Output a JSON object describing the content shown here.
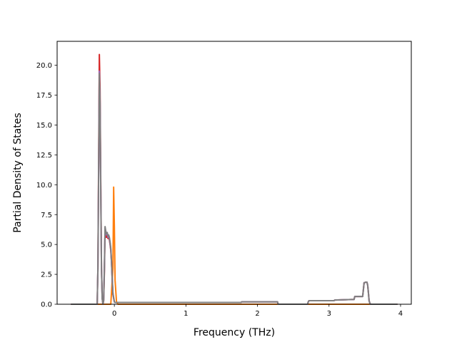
{
  "chart_data": {
    "type": "line",
    "title": "",
    "xlabel": "Frequency (THz)",
    "ylabel": "Partial Density of States",
    "xlim": [
      -0.8,
      4.15
    ],
    "ylim": [
      0,
      22
    ],
    "xticks": [
      0,
      1,
      2,
      3,
      4
    ],
    "xtick_labels": [
      "0",
      "1",
      "2",
      "3",
      "4"
    ],
    "yticks": [
      0.0,
      2.5,
      5.0,
      7.5,
      10.0,
      12.5,
      15.0,
      17.5,
      20.0
    ],
    "ytick_labels": [
      "0.0",
      "2.5",
      "5.0",
      "7.5",
      "10.0",
      "12.5",
      "15.0",
      "17.5",
      "20.0"
    ],
    "grid": false,
    "legend": "none",
    "series": [
      {
        "color": "#ff7f0e",
        "x": [
          -0.6,
          -0.05,
          -0.02,
          -0.01,
          0.0,
          0.01,
          0.03,
          0.05,
          3.95
        ],
        "y": [
          0,
          0,
          3.0,
          9.8,
          6.5,
          2.0,
          0.2,
          0,
          0
        ]
      },
      {
        "color": "#d62728",
        "x": [
          -0.6,
          -0.24,
          -0.23,
          -0.22,
          -0.21,
          -0.2,
          -0.19,
          -0.18,
          -0.17,
          -0.16,
          -0.15,
          -0.14,
          -0.13,
          -0.12,
          -0.11,
          -0.1,
          -0.09,
          -0.08,
          -0.07,
          -0.06,
          -0.05,
          -0.04,
          -0.03,
          -0.02,
          0.0,
          0.01,
          0.02,
          0.03,
          0.05,
          0.2,
          0.5,
          1.0,
          1.5,
          1.77,
          1.78,
          2.0,
          2.28,
          2.29,
          2.7,
          2.71,
          2.72,
          3.07,
          3.08,
          3.35,
          3.36,
          3.47,
          3.48,
          3.49,
          3.5,
          3.51,
          3.53,
          3.54,
          3.55,
          3.56,
          3.57,
          3.58,
          3.95
        ],
        "y": [
          0,
          0,
          3.0,
          12.0,
          20.9,
          18.0,
          10.0,
          3.0,
          0.5,
          0,
          0.3,
          2.5,
          6.2,
          5.6,
          5.6,
          5.9,
          5.5,
          5.6,
          5.4,
          5.0,
          4.5,
          3.5,
          2.0,
          0.8,
          0.2,
          0.15,
          0.15,
          0.15,
          0.15,
          0.15,
          0.15,
          0.15,
          0.15,
          0.15,
          0.2,
          0.2,
          0.2,
          0,
          0,
          0.2,
          0.3,
          0.3,
          0.35,
          0.4,
          0.65,
          0.65,
          1.2,
          1.8,
          1.8,
          1.85,
          1.85,
          1.6,
          1.0,
          0.3,
          0.1,
          0,
          0
        ]
      },
      {
        "color": "#9467bd",
        "x": [
          -0.6,
          -0.24,
          -0.23,
          -0.22,
          -0.21,
          -0.2,
          -0.19,
          -0.18,
          -0.17,
          -0.16,
          -0.15,
          -0.14,
          -0.13,
          -0.12,
          -0.11,
          -0.1,
          -0.09,
          -0.08,
          -0.07,
          -0.06,
          -0.05,
          -0.04,
          -0.03,
          -0.02,
          0.0,
          0.01,
          0.02,
          0.03,
          0.05,
          0.2,
          0.5,
          1.0,
          1.5,
          1.77,
          1.78,
          2.0,
          2.28,
          2.29,
          2.7,
          2.71,
          2.72,
          3.07,
          3.08,
          3.35,
          3.36,
          3.47,
          3.48,
          3.49,
          3.5,
          3.51,
          3.53,
          3.54,
          3.55,
          3.56,
          3.57,
          3.58,
          3.95
        ],
        "y": [
          0,
          0,
          3.0,
          11.0,
          19.5,
          17.0,
          9.5,
          3.0,
          0.5,
          0,
          0.3,
          2.8,
          6.4,
          6.0,
          5.8,
          6.0,
          5.6,
          5.7,
          5.5,
          5.1,
          4.6,
          3.6,
          2.1,
          0.9,
          0.2,
          0.15,
          0.15,
          0.15,
          0.15,
          0.15,
          0.15,
          0.15,
          0.15,
          0.15,
          0.2,
          0.2,
          0.2,
          0,
          0,
          0.2,
          0.3,
          0.3,
          0.35,
          0.4,
          0.65,
          0.65,
          1.2,
          1.8,
          1.8,
          1.85,
          1.85,
          1.6,
          1.0,
          0.3,
          0.1,
          0,
          0
        ]
      },
      {
        "color": "#7f7f7f",
        "x": [
          -0.6,
          -0.24,
          -0.23,
          -0.22,
          -0.21,
          -0.2,
          -0.19,
          -0.18,
          -0.17,
          -0.16,
          -0.15,
          -0.14,
          -0.13,
          -0.12,
          -0.11,
          -0.1,
          -0.09,
          -0.08,
          -0.07,
          -0.06,
          -0.05,
          -0.04,
          -0.03,
          -0.02,
          0.0,
          0.01,
          0.02,
          0.03,
          0.05,
          0.2,
          0.5,
          1.0,
          1.5,
          1.77,
          1.78,
          2.0,
          2.28,
          2.29,
          2.7,
          2.71,
          2.72,
          3.07,
          3.08,
          3.35,
          3.36,
          3.47,
          3.48,
          3.49,
          3.5,
          3.51,
          3.53,
          3.54,
          3.55,
          3.56,
          3.57,
          3.58,
          3.95
        ],
        "y": [
          0,
          0,
          3.0,
          11.0,
          19.3,
          16.8,
          9.3,
          3.0,
          0.5,
          0,
          0.3,
          2.8,
          6.5,
          6.1,
          5.9,
          6.0,
          5.7,
          5.8,
          5.6,
          5.2,
          4.7,
          3.6,
          2.1,
          0.9,
          0.2,
          0.15,
          0.15,
          0.15,
          0.15,
          0.15,
          0.15,
          0.15,
          0.15,
          0.15,
          0.2,
          0.2,
          0.2,
          0,
          0,
          0.2,
          0.3,
          0.3,
          0.35,
          0.4,
          0.65,
          0.65,
          1.2,
          1.8,
          1.8,
          1.85,
          1.85,
          1.6,
          1.0,
          0.3,
          0.1,
          0,
          0
        ]
      }
    ]
  }
}
